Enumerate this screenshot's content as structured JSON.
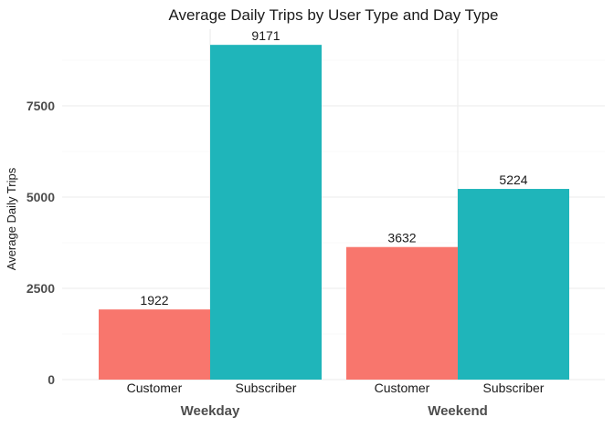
{
  "chart_data": {
    "type": "bar",
    "title": "Average Daily Trips by User Type and Day Type",
    "xlabel": "",
    "ylabel": "Average Daily Trips",
    "ylim": [
      0,
      9600
    ],
    "y_ticks": [
      0,
      2500,
      5000,
      7500
    ],
    "y_tick_labels": [
      "0",
      "2500",
      "5000",
      "7500"
    ],
    "grid": true,
    "legend": "none",
    "groups": [
      {
        "label": "Weekday",
        "bars": [
          {
            "label": "Customer",
            "value": 1922,
            "value_label": "1922"
          },
          {
            "label": "Subscriber",
            "value": 9171,
            "value_label": "9171"
          }
        ]
      },
      {
        "label": "Weekend",
        "bars": [
          {
            "label": "Customer",
            "value": 3632,
            "value_label": "3632"
          },
          {
            "label": "Subscriber",
            "value": 5224,
            "value_label": "5224"
          }
        ]
      }
    ],
    "colors": {
      "Customer": "#F8766D",
      "Subscriber": "#1FB5BA"
    }
  }
}
